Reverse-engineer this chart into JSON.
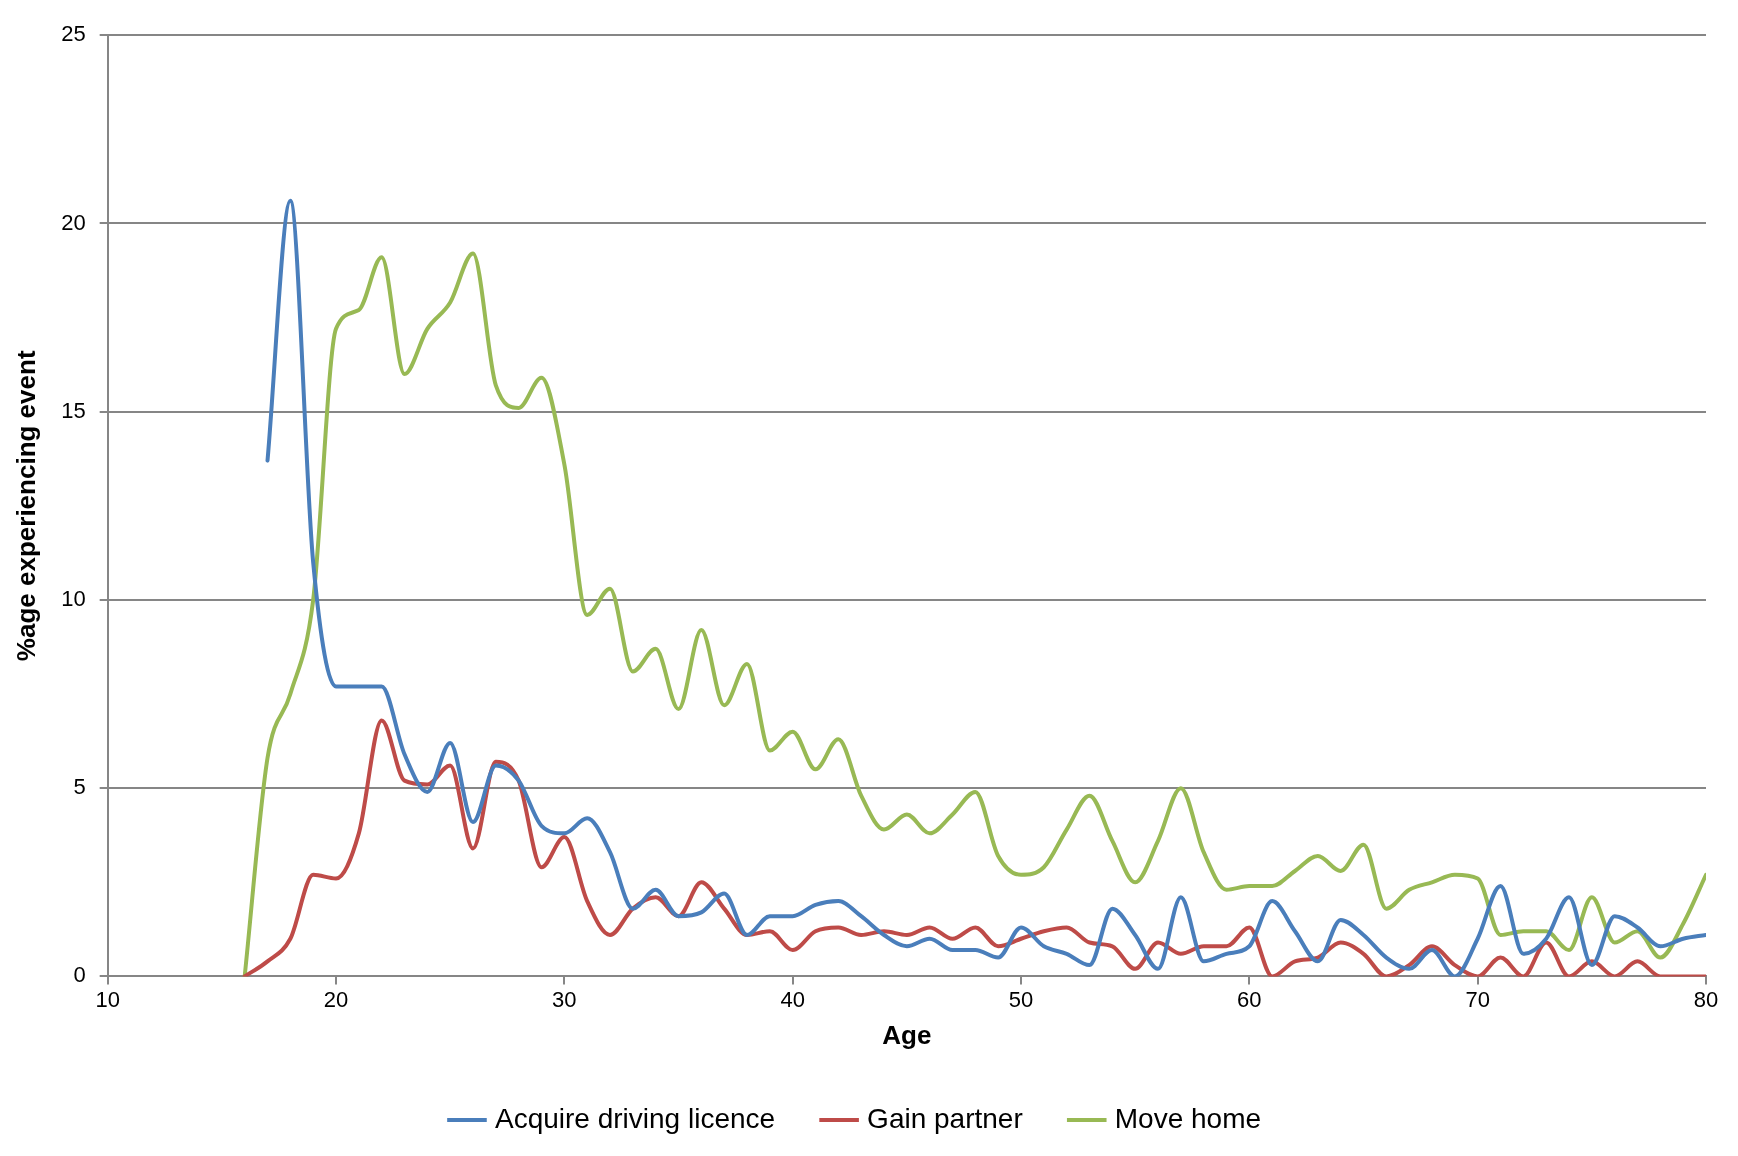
{
  "chart_data": {
    "type": "line",
    "xlabel": "Age",
    "ylabel": "%age experiencing event",
    "x": [
      16,
      17,
      18,
      19,
      20,
      21,
      22,
      23,
      24,
      25,
      26,
      27,
      28,
      29,
      30,
      31,
      32,
      33,
      34,
      35,
      36,
      37,
      38,
      39,
      40,
      41,
      42,
      43,
      44,
      45,
      46,
      47,
      48,
      49,
      50,
      51,
      52,
      53,
      54,
      55,
      56,
      57,
      58,
      59,
      60,
      61,
      62,
      63,
      64,
      65,
      66,
      67,
      68,
      69,
      70,
      71,
      72,
      73,
      74,
      75,
      76,
      77,
      78,
      79,
      80
    ],
    "series": [
      {
        "name": "Acquire driving licence",
        "color": "#4a7ebb",
        "values": [
          null,
          13.7,
          20.6,
          11,
          7.7,
          7.7,
          7.7,
          5.9,
          4.9,
          6.2,
          4.1,
          5.6,
          5.2,
          4.0,
          3.8,
          4.2,
          3.3,
          1.8,
          2.3,
          1.6,
          1.7,
          2.2,
          1.1,
          1.6,
          1.6,
          1.9,
          2.0,
          1.6,
          1.1,
          0.8,
          1.0,
          0.7,
          0.7,
          0.5,
          1.3,
          0.8,
          0.6,
          0.3,
          1.8,
          1.1,
          0.2,
          2.1,
          0.4,
          0.6,
          0.8,
          2.0,
          1.2,
          0.4,
          1.5,
          1.1,
          0.5,
          0.2,
          0.7,
          0.0,
          1.0,
          2.4,
          0.6,
          1.0,
          2.1,
          0.3,
          1.6,
          1.3,
          0.8,
          1.0,
          1.1
        ]
      },
      {
        "name": "Gain partner",
        "color": "#be4b48",
        "values": [
          0,
          0.4,
          1.0,
          2.7,
          2.6,
          3.8,
          6.8,
          5.2,
          5.1,
          5.6,
          3.4,
          5.7,
          5.2,
          2.9,
          3.7,
          2.0,
          1.1,
          1.8,
          2.1,
          1.6,
          2.5,
          1.8,
          1.1,
          1.2,
          0.7,
          1.2,
          1.3,
          1.1,
          1.2,
          1.1,
          1.3,
          1.0,
          1.3,
          0.8,
          1.0,
          1.2,
          1.3,
          0.9,
          0.8,
          0.2,
          0.9,
          0.6,
          0.8,
          0.8,
          1.3,
          0.0,
          0.4,
          0.5,
          0.9,
          0.6,
          0.0,
          0.3,
          0.8,
          0.3,
          0.0,
          0.5,
          0.0,
          0.9,
          0.0,
          0.4,
          0.0,
          0.4,
          0.0,
          0.0,
          0.0
        ]
      },
      {
        "name": "Move home",
        "color": "#98b954",
        "values": [
          0,
          5.8,
          7.5,
          10.0,
          17.2,
          17.7,
          19.1,
          16.0,
          17.2,
          17.9,
          19.2,
          15.7,
          15.1,
          15.9,
          13.6,
          9.6,
          10.3,
          8.1,
          8.7,
          7.1,
          9.2,
          7.2,
          8.3,
          6.0,
          6.5,
          5.5,
          6.3,
          4.8,
          3.9,
          4.3,
          3.8,
          4.3,
          4.9,
          3.2,
          2.7,
          2.9,
          3.9,
          4.8,
          3.6,
          2.5,
          3.6,
          5.0,
          3.3,
          2.3,
          2.4,
          2.4,
          2.8,
          3.2,
          2.8,
          3.5,
          1.8,
          2.3,
          2.5,
          2.7,
          2.6,
          1.1,
          1.2,
          1.2,
          0.7,
          2.1,
          0.9,
          1.2,
          0.5,
          1.4,
          2.7
        ]
      }
    ],
    "xlim": [
      10,
      80
    ],
    "xticks": [
      10,
      20,
      30,
      40,
      50,
      60,
      70,
      80
    ],
    "ylim": [
      0,
      25
    ],
    "yticks": [
      0,
      5,
      10,
      15,
      20,
      25
    ],
    "grid": "y",
    "legend": "bottom",
    "marker": "none",
    "line_style": "solid"
  }
}
